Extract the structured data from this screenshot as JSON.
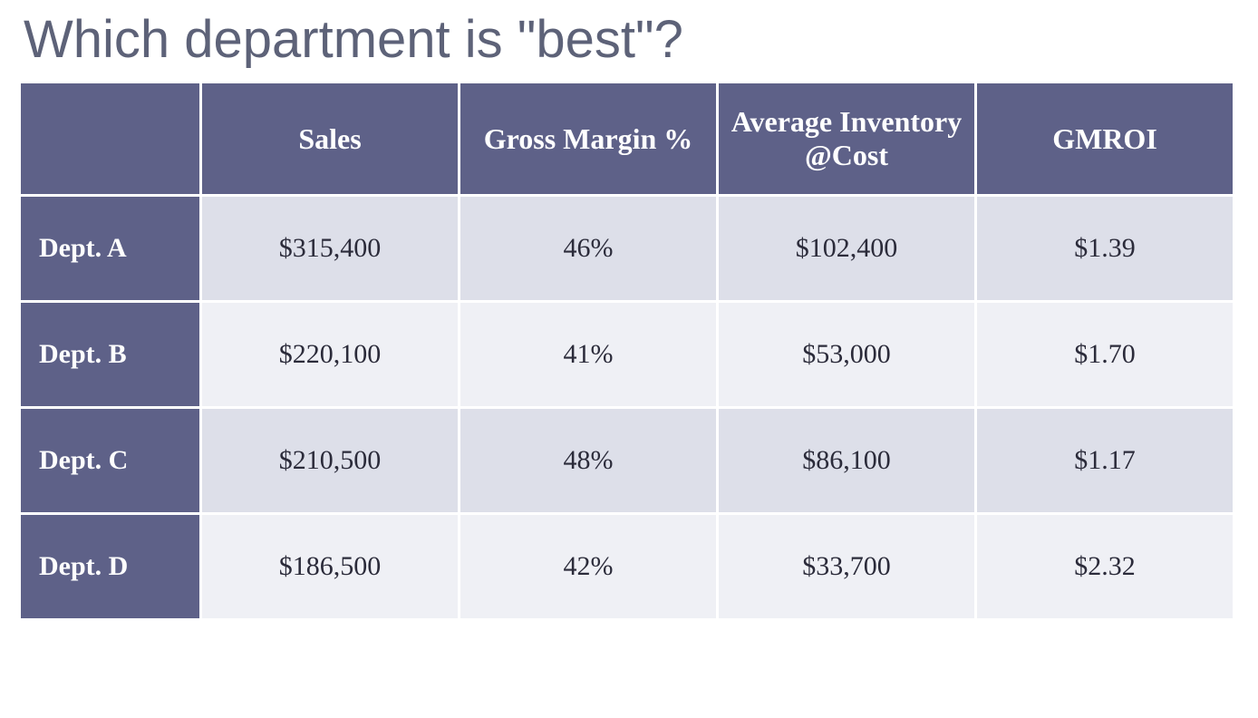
{
  "title": "Which department is \"best\"?",
  "table": {
    "header_bg": "#5e6188",
    "header_color": "#ffffff",
    "row_odd_bg": "#dddfe9",
    "row_even_bg": "#eff0f5",
    "cell_color": "#2b2b3a",
    "border_color": "#ffffff",
    "title_color": "#5d6278",
    "title_fontsize": 58,
    "header_fontsize": 32,
    "cell_fontsize": 30,
    "columns": [
      "",
      "Sales",
      "Gross Margin %",
      "Average Inventory @Cost",
      "GMROI"
    ],
    "rows": [
      {
        "label": "Dept. A",
        "sales": "$315,400",
        "margin": "46%",
        "inventory": "$102,400",
        "gmroi": "$1.39"
      },
      {
        "label": "Dept. B",
        "sales": "$220,100",
        "margin": "41%",
        "inventory": "$53,000",
        "gmroi": "$1.70"
      },
      {
        "label": "Dept. C",
        "sales": "$210,500",
        "margin": "48%",
        "inventory": "$86,100",
        "gmroi": "$1.17"
      },
      {
        "label": "Dept. D",
        "sales": "$186,500",
        "margin": "42%",
        "inventory": "$33,700",
        "gmroi": "$2.32"
      }
    ]
  }
}
